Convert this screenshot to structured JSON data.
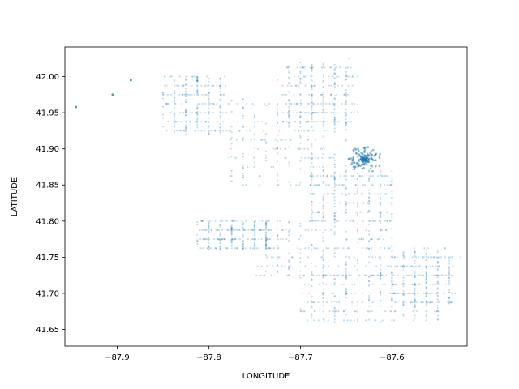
{
  "chart_data": {
    "type": "scatter",
    "title": "",
    "xlabel": "LONGITUDE",
    "ylabel": "LATITUDE",
    "xlim": [
      -87.957,
      -87.518
    ],
    "ylim": [
      41.627,
      42.041
    ],
    "xticks": [
      -87.9,
      -87.8,
      -87.7,
      -87.6
    ],
    "xtick_labels": [
      "−87.9",
      "−87.8",
      "−87.7",
      "−87.6"
    ],
    "yticks": [
      41.65,
      41.7,
      41.75,
      41.8,
      41.85,
      41.9,
      41.95,
      42.0
    ],
    "ytick_labels": [
      "41.65",
      "41.70",
      "41.75",
      "41.80",
      "41.85",
      "41.90",
      "41.95",
      "42.00"
    ],
    "grid": false,
    "legend": "none",
    "marker_color": "#1f77b4",
    "marker_alpha": 0.08,
    "density_regions": [
      {
        "x": [
          -87.78,
          -87.65
        ],
        "y": [
          41.85,
          41.97
        ]
      },
      {
        "x": [
          -87.72,
          -87.64
        ],
        "y": [
          41.93,
          42.02
        ]
      },
      {
        "x": [
          -87.69,
          -87.6
        ],
        "y": [
          41.8,
          41.87
        ]
      },
      {
        "x": [
          -87.75,
          -87.6
        ],
        "y": [
          41.72,
          41.8
        ]
      },
      {
        "x": [
          -87.7,
          -87.55
        ],
        "y": [
          41.66,
          41.73
        ]
      },
      {
        "x": [
          -87.6,
          -87.53
        ],
        "y": [
          41.68,
          41.76
        ]
      },
      {
        "x": [
          -87.85,
          -87.78
        ],
        "y": [
          41.92,
          42.0
        ]
      },
      {
        "x": [
          -87.81,
          -87.73
        ],
        "y": [
          41.76,
          41.8
        ]
      }
    ],
    "hotspot": {
      "x": -87.63,
      "y": 41.885
    },
    "isolated_points": [
      {
        "x": -87.945,
        "y": 41.958
      },
      {
        "x": -87.885,
        "y": 41.995
      },
      {
        "x": -87.905,
        "y": 41.975
      }
    ]
  }
}
